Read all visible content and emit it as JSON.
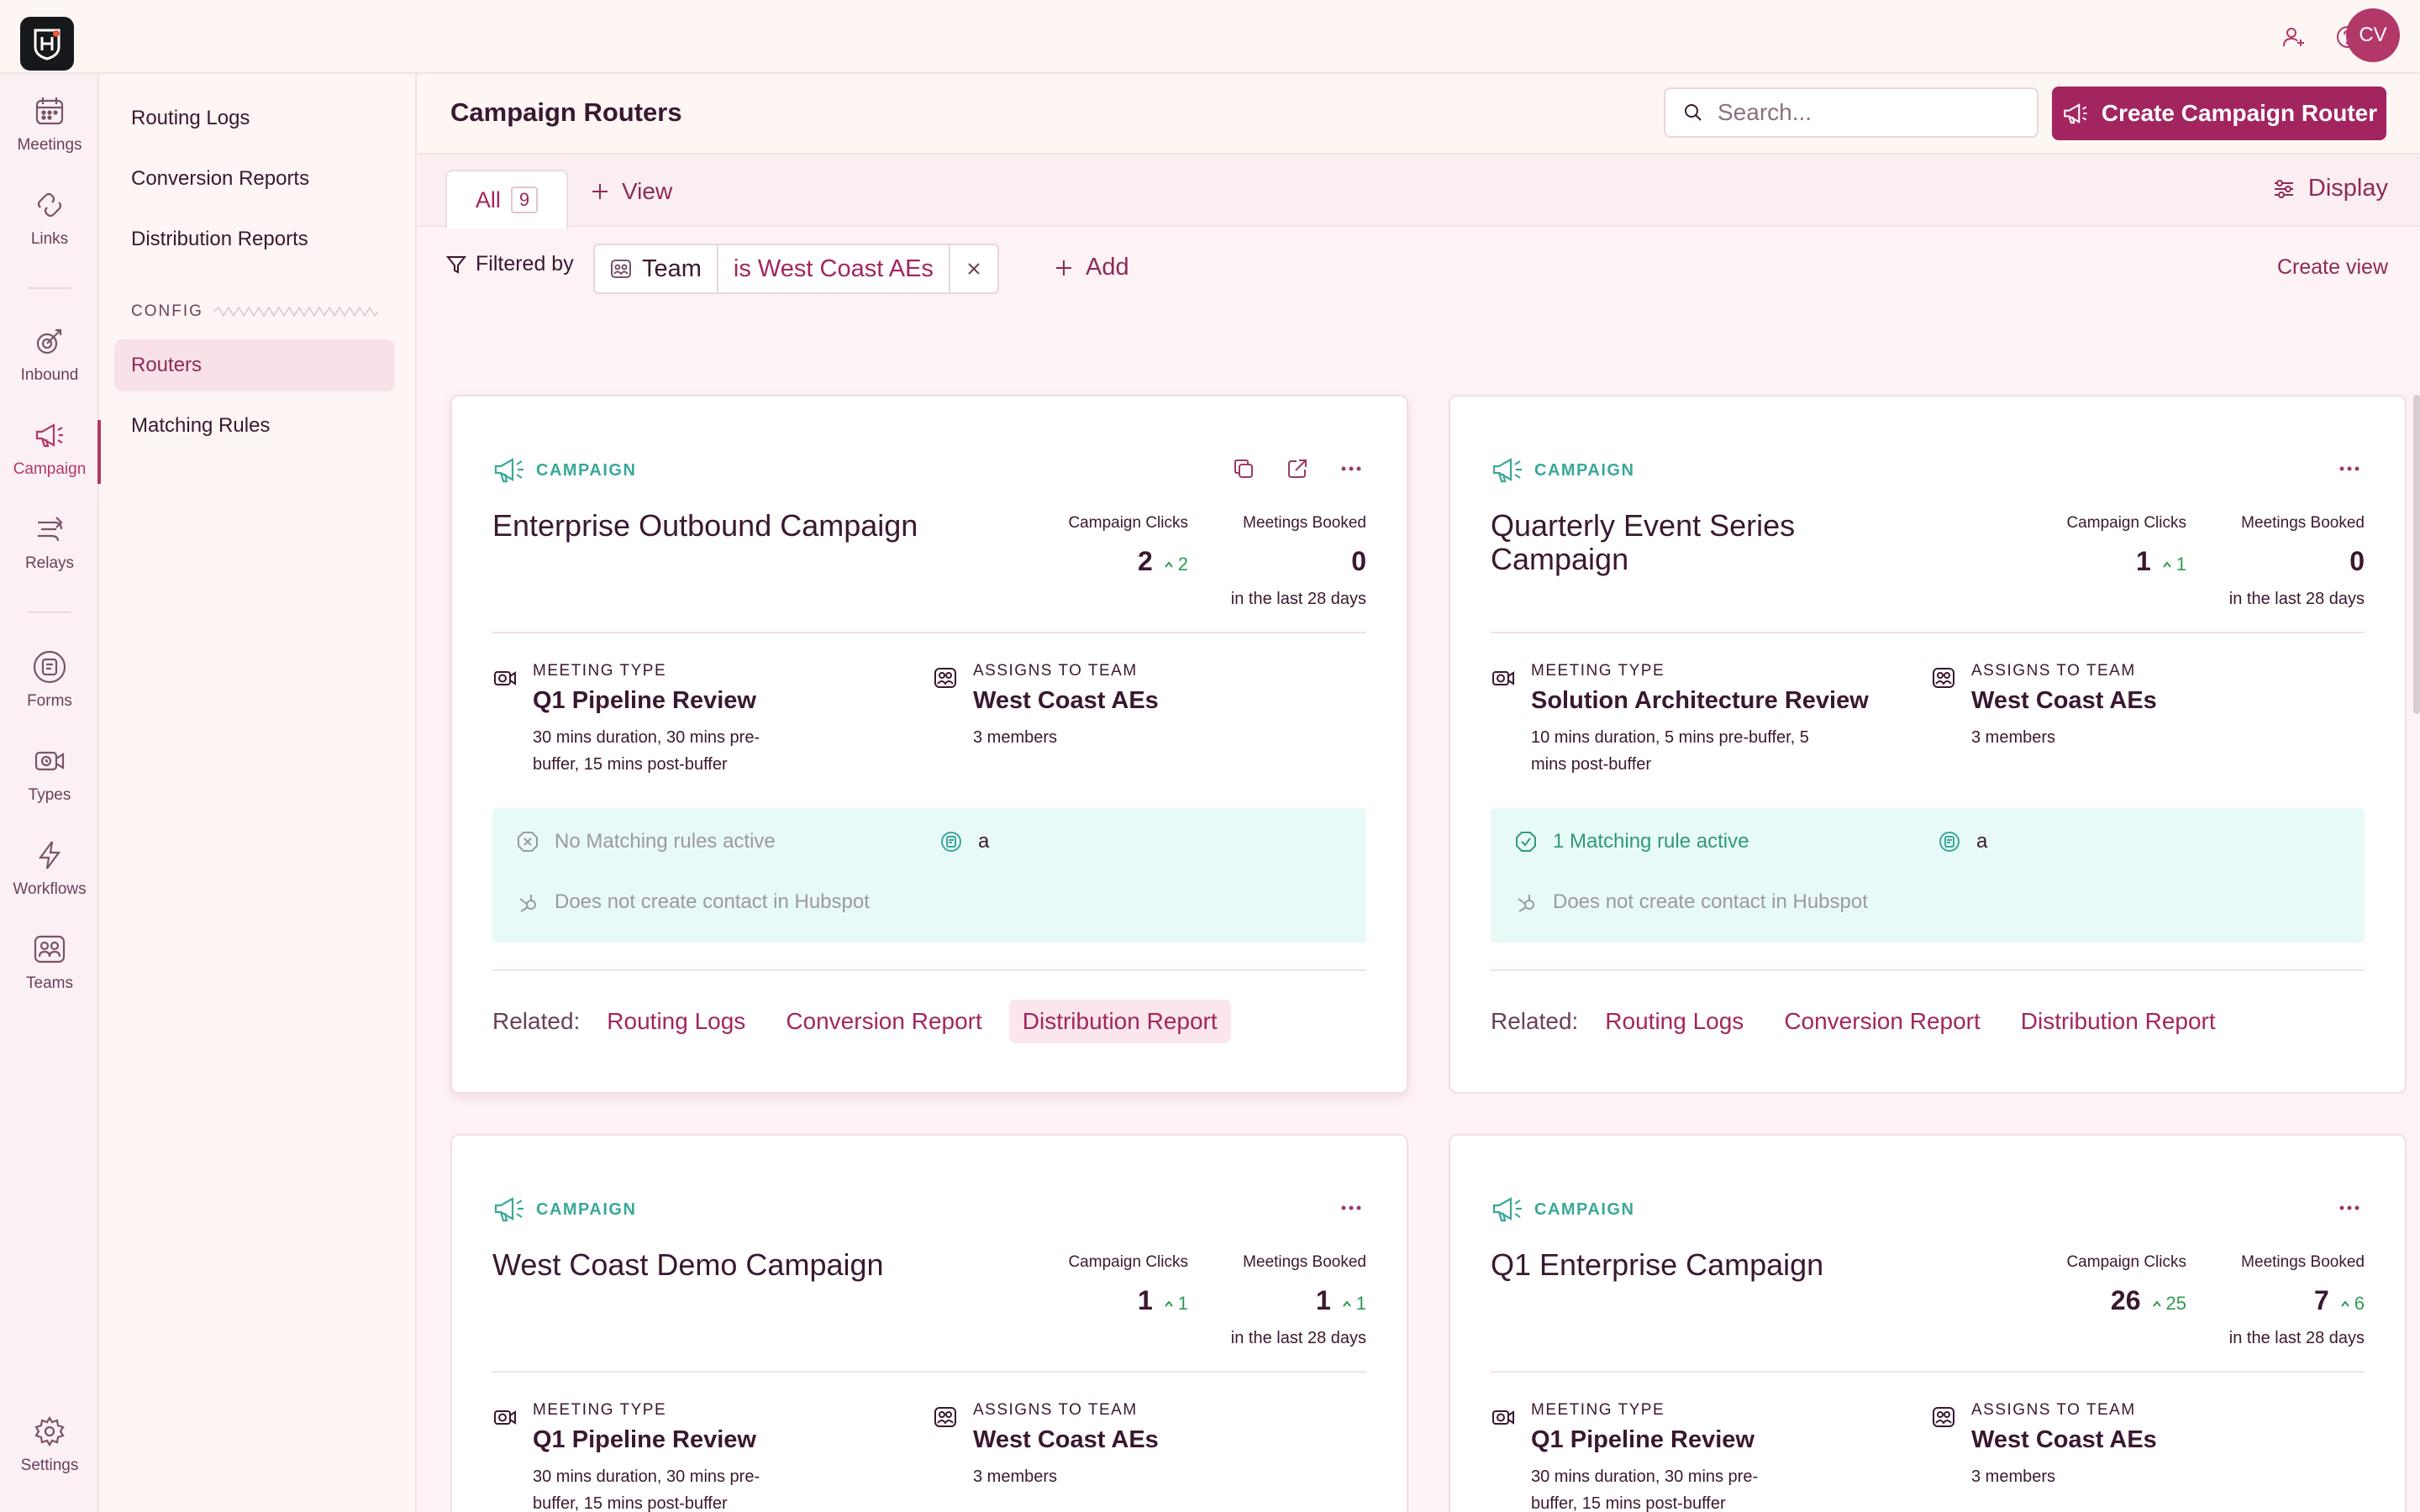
{
  "user": {
    "initials": "CV"
  },
  "rail": {
    "items": [
      {
        "label": "Meetings",
        "icon": "calendar-icon"
      },
      {
        "label": "Links",
        "icon": "link-icon"
      },
      {
        "label": "Inbound",
        "icon": "inbound-icon"
      },
      {
        "label": "Campaign",
        "icon": "megaphone-icon",
        "active": true
      },
      {
        "label": "Relays",
        "icon": "relay-icon"
      },
      {
        "label": "Forms",
        "icon": "form-icon"
      },
      {
        "label": "Types",
        "icon": "video-icon"
      },
      {
        "label": "Workflows",
        "icon": "lightning-icon"
      },
      {
        "label": "Teams",
        "icon": "team-icon"
      },
      {
        "label": "Settings",
        "icon": "gear-icon"
      }
    ]
  },
  "subnav": {
    "items": [
      "Routing Logs",
      "Conversion Reports",
      "Distribution Reports"
    ],
    "section": "CONFIG",
    "config_items": [
      "Routers",
      "Matching Rules"
    ],
    "active": "Routers"
  },
  "header": {
    "title": "Campaign Routers",
    "search_placeholder": "Search...",
    "create_label": "Create Campaign Router"
  },
  "tabs": {
    "all_label": "All",
    "all_count": "9",
    "view_label": "View",
    "display_label": "Display"
  },
  "filter": {
    "label": "Filtered by",
    "field": "Team",
    "value": "is West Coast AEs",
    "add_label": "Add",
    "create_view": "Create view"
  },
  "card_common": {
    "badge": "CAMPAIGN",
    "clicks_label": "Campaign Clicks",
    "booked_label": "Meetings Booked",
    "period": "in the last 28 days",
    "meeting_type_label": "MEETING TYPE",
    "team_label": "ASSIGNS TO TEAM",
    "related_label": "Related:",
    "related_links": [
      "Routing Logs",
      "Conversion Report",
      "Distribution Report"
    ],
    "hubspot": "Does not create contact in Hubspot"
  },
  "cards": [
    {
      "title": "Enterprise Outbound Campaign",
      "clicks": "2",
      "clicks_delta": "2",
      "booked": "0",
      "booked_delta": "",
      "meeting_type": "Q1 Pipeline Review",
      "meeting_desc": "30 mins duration, 30 mins pre-buffer, 15 mins post-buffer",
      "team": "West Coast AEs",
      "team_members": "3 members",
      "rules": "No Matching rules active",
      "rules_active": false,
      "tag": "a"
    },
    {
      "title": "Quarterly Event Series Campaign",
      "clicks": "1",
      "clicks_delta": "1",
      "booked": "0",
      "booked_delta": "",
      "meeting_type": "Solution Architecture Review",
      "meeting_desc": "10 mins duration, 5 mins pre-buffer, 5 mins post-buffer",
      "team": "West Coast AEs",
      "team_members": "3 members",
      "rules": "1 Matching rule active",
      "rules_active": true,
      "tag": "a"
    },
    {
      "title": "West Coast Demo Campaign",
      "clicks": "1",
      "clicks_delta": "1",
      "booked": "1",
      "booked_delta": "1",
      "meeting_type": "Q1 Pipeline Review",
      "meeting_desc": "30 mins duration, 30 mins pre-buffer, 15 mins post-buffer",
      "team": "West Coast AEs",
      "team_members": "3 members"
    },
    {
      "title": "Q1 Enterprise Campaign",
      "clicks": "26",
      "clicks_delta": "25",
      "booked": "7",
      "booked_delta": "6",
      "meeting_type": "Q1 Pipeline Review",
      "meeting_desc": "30 mins duration, 30 mins pre-buffer, 15 mins post-buffer",
      "team": "West Coast AEs",
      "team_members": "3 members"
    }
  ]
}
